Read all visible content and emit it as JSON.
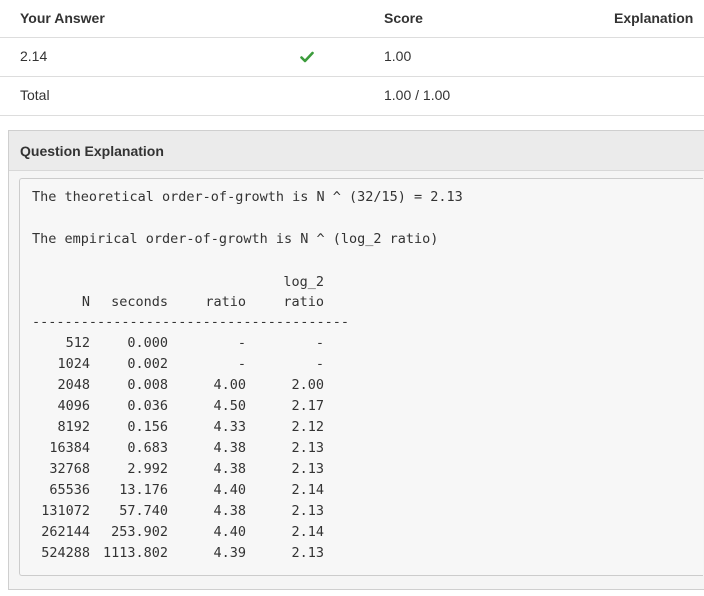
{
  "score_table": {
    "headers": {
      "answer": "Your Answer",
      "score": "Score",
      "explanation": "Explanation"
    },
    "rows": [
      {
        "answer": "2.14",
        "correct": true,
        "score": "1.00"
      },
      {
        "answer": "Total",
        "score": "1.00 / 1.00"
      }
    ],
    "check_color": "#3c9c3c"
  },
  "explanation": {
    "title": "Question Explanation",
    "theoretical_line": "The theoretical order-of-growth is N ^ (32/15) = 2.13",
    "empirical_line": "The empirical order-of-growth is N ^ (log_2 ratio)",
    "columns": {
      "n": "N",
      "seconds": "seconds",
      "ratio": "ratio",
      "log_top": "log_2",
      "log_bottom": "ratio"
    },
    "separator": "---------------------------------------",
    "rows": [
      {
        "n": "512",
        "seconds": "0.000",
        "ratio": "-",
        "log": "-"
      },
      {
        "n": "1024",
        "seconds": "0.002",
        "ratio": "-",
        "log": "-"
      },
      {
        "n": "2048",
        "seconds": "0.008",
        "ratio": "4.00",
        "log": "2.00"
      },
      {
        "n": "4096",
        "seconds": "0.036",
        "ratio": "4.50",
        "log": "2.17"
      },
      {
        "n": "8192",
        "seconds": "0.156",
        "ratio": "4.33",
        "log": "2.12"
      },
      {
        "n": "16384",
        "seconds": "0.683",
        "ratio": "4.38",
        "log": "2.13"
      },
      {
        "n": "32768",
        "seconds": "2.992",
        "ratio": "4.38",
        "log": "2.13"
      },
      {
        "n": "65536",
        "seconds": "13.176",
        "ratio": "4.40",
        "log": "2.14"
      },
      {
        "n": "131072",
        "seconds": "57.740",
        "ratio": "4.38",
        "log": "2.13"
      },
      {
        "n": "262144",
        "seconds": "253.902",
        "ratio": "4.40",
        "log": "2.14"
      },
      {
        "n": "524288",
        "seconds": "1113.802",
        "ratio": "4.39",
        "log": "2.13"
      }
    ]
  }
}
